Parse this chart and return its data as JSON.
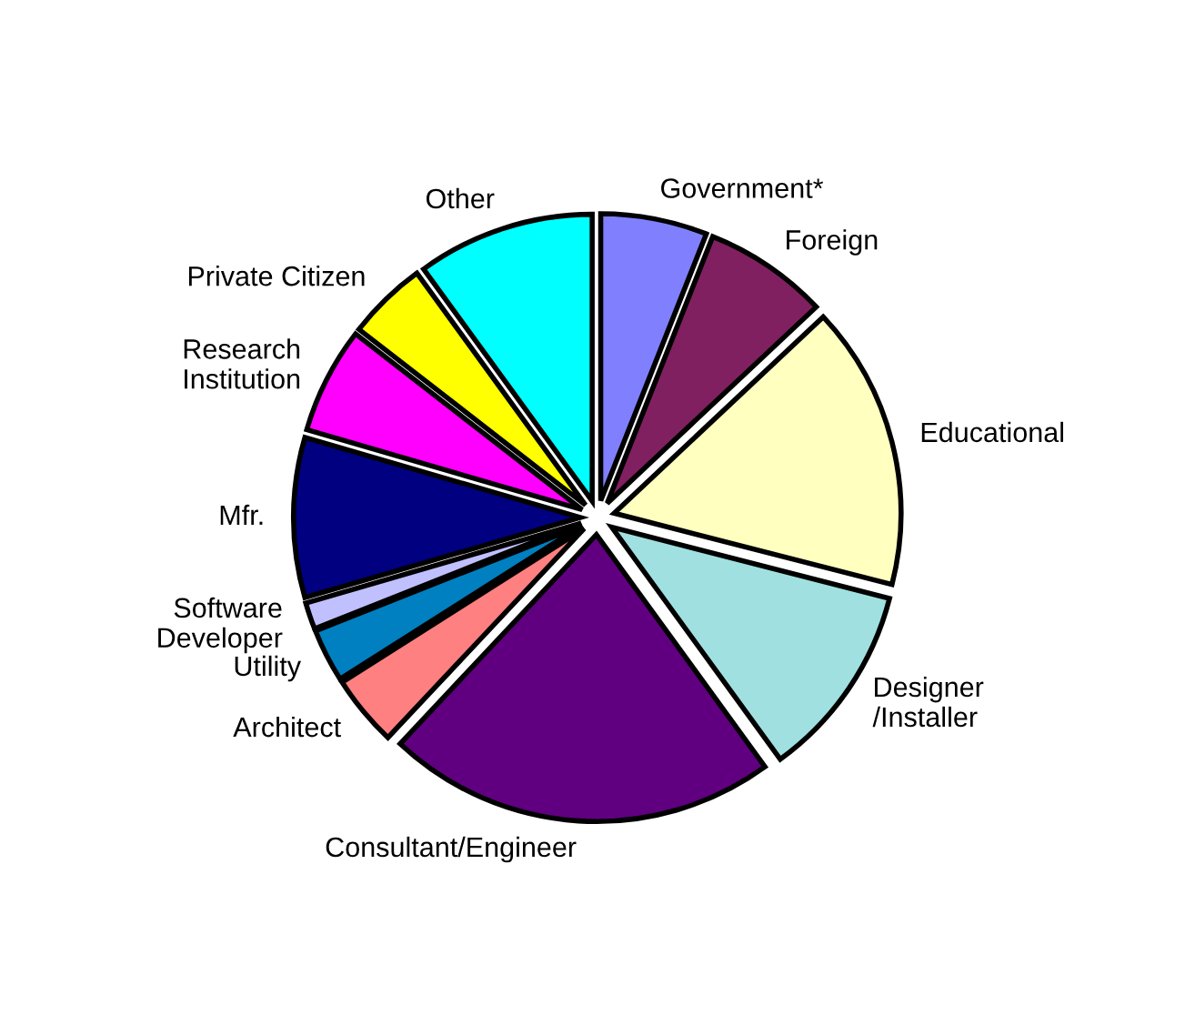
{
  "chart_data": {
    "type": "pie",
    "categories": [
      "Government*",
      "Foreign",
      "Educational",
      "Designer\n/Installer",
      "Consultant/Engineer",
      "Architect",
      "Utility",
      "Software\nDeveloper",
      "Mfr.",
      "Research\nInstitution",
      "Private Citizen",
      "Other"
    ],
    "values": [
      6,
      7,
      16,
      11,
      22,
      4,
      3,
      1.5,
      9,
      6,
      4.5,
      10
    ],
    "colors": [
      "#8080ff",
      "#802060",
      "#ffffc0",
      "#a0e0e0",
      "#600080",
      "#ff8080",
      "#0080c0",
      "#c0c0ff",
      "#000080",
      "#ff00ff",
      "#ffff00",
      "#00ffff"
    ],
    "legend": false
  }
}
